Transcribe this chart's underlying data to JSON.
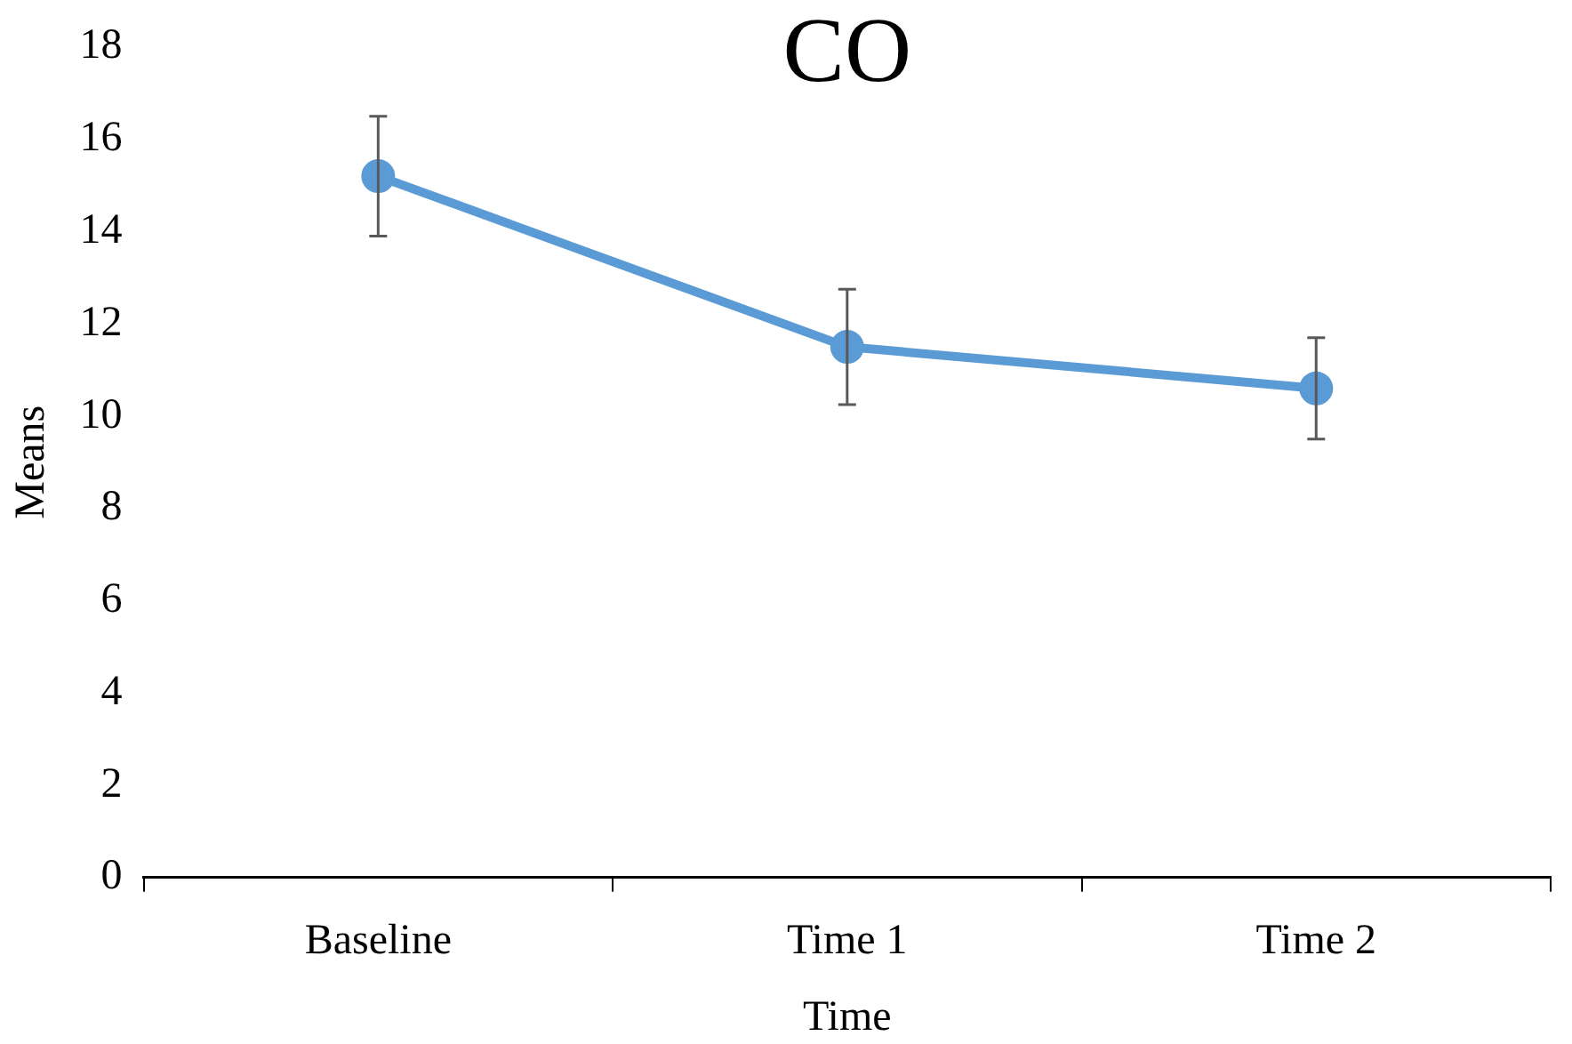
{
  "chart_data": {
    "type": "line",
    "title": "CO",
    "xlabel": "Time",
    "ylabel": "Means",
    "categories": [
      "Baseline",
      "Time 1",
      "Time 2"
    ],
    "series": [
      {
        "color": "#5b9bd5",
        "values": [
          15.2,
          11.5,
          10.6
        ],
        "errors": [
          1.3,
          1.25,
          1.1
        ]
      }
    ],
    "ylim": [
      0,
      18
    ],
    "yticks": [
      0,
      2,
      4,
      6,
      8,
      10,
      12,
      14,
      16,
      18
    ],
    "grid": false,
    "legend": false,
    "marker": "circle",
    "line_style": "solid"
  }
}
